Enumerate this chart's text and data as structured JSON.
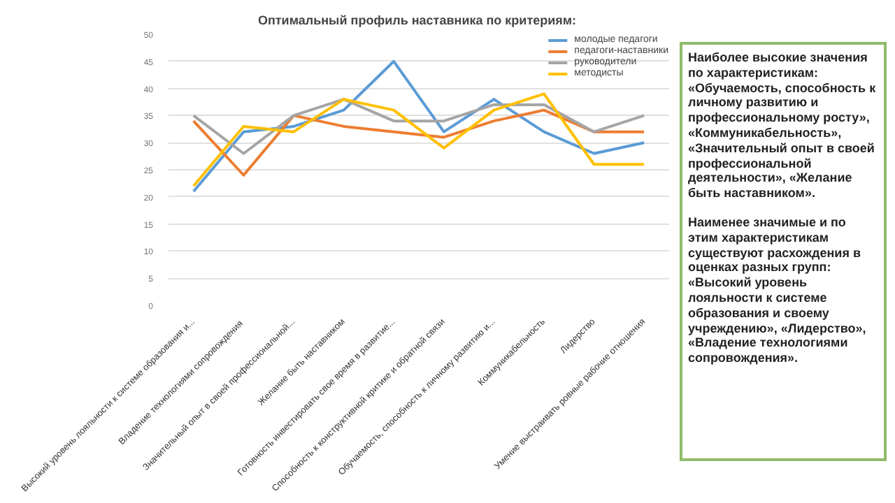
{
  "chart_data": {
    "type": "line",
    "title": "Оптимальный профиль наставника  по критериям:",
    "categories": [
      "Высокий уровень лояльности к системе образования и...",
      "Владение  технологиями сопровождения",
      "Значительный опыт в своей профессиональной...",
      "Желание быть наставником",
      "Готовность инвестировать свое время в развитие...",
      "Способность к конструктивной критике и обратной связи",
      "Обучаемость, способность к личному развитию и...",
      "Коммуникабельность",
      "Лидерство",
      "Умение выстраивать ровные рабочие отношения"
    ],
    "series": [
      {
        "name": "молодые педагоги",
        "color": "#5b9bd5",
        "values": [
          21,
          32,
          33,
          36,
          45,
          32,
          38,
          32,
          28,
          30
        ]
      },
      {
        "name": "педагоги-наставники",
        "color": "#ed7d31",
        "values": [
          34,
          24,
          35,
          33,
          32,
          31,
          34,
          36,
          32,
          32
        ]
      },
      {
        "name": "руководители",
        "color": "#a5a5a5",
        "values": [
          35,
          28,
          35,
          38,
          34,
          34,
          37,
          37,
          32,
          35
        ]
      },
      {
        "name": "методисты",
        "color": "#ffc000",
        "values": [
          22,
          33,
          32,
          38,
          36,
          29,
          36,
          39,
          26,
          26
        ]
      }
    ],
    "ylim": [
      0,
      50
    ],
    "yticks": [
      0,
      5,
      10,
      15,
      20,
      25,
      30,
      35,
      40,
      45,
      50
    ],
    "grid": "y",
    "legend": "top right",
    "marker": "none",
    "line_style": "solid",
    "annotations": [
      "Наиболее высокие значения по характеристикам: «Обучаемость, способность к личному развитию и профессиональному росту», «Коммуникабельность», «Значительный опыт в своей профессиональной деятельности», «Желание быть наставником».",
      "Наименее значимые и по этим характеристикам существуют расхождения в оценках разных групп: «Высокий уровень лояльности к системе образования и своему учреждению», «Лидерство», «Владение технологиями сопровождения»."
    ]
  }
}
